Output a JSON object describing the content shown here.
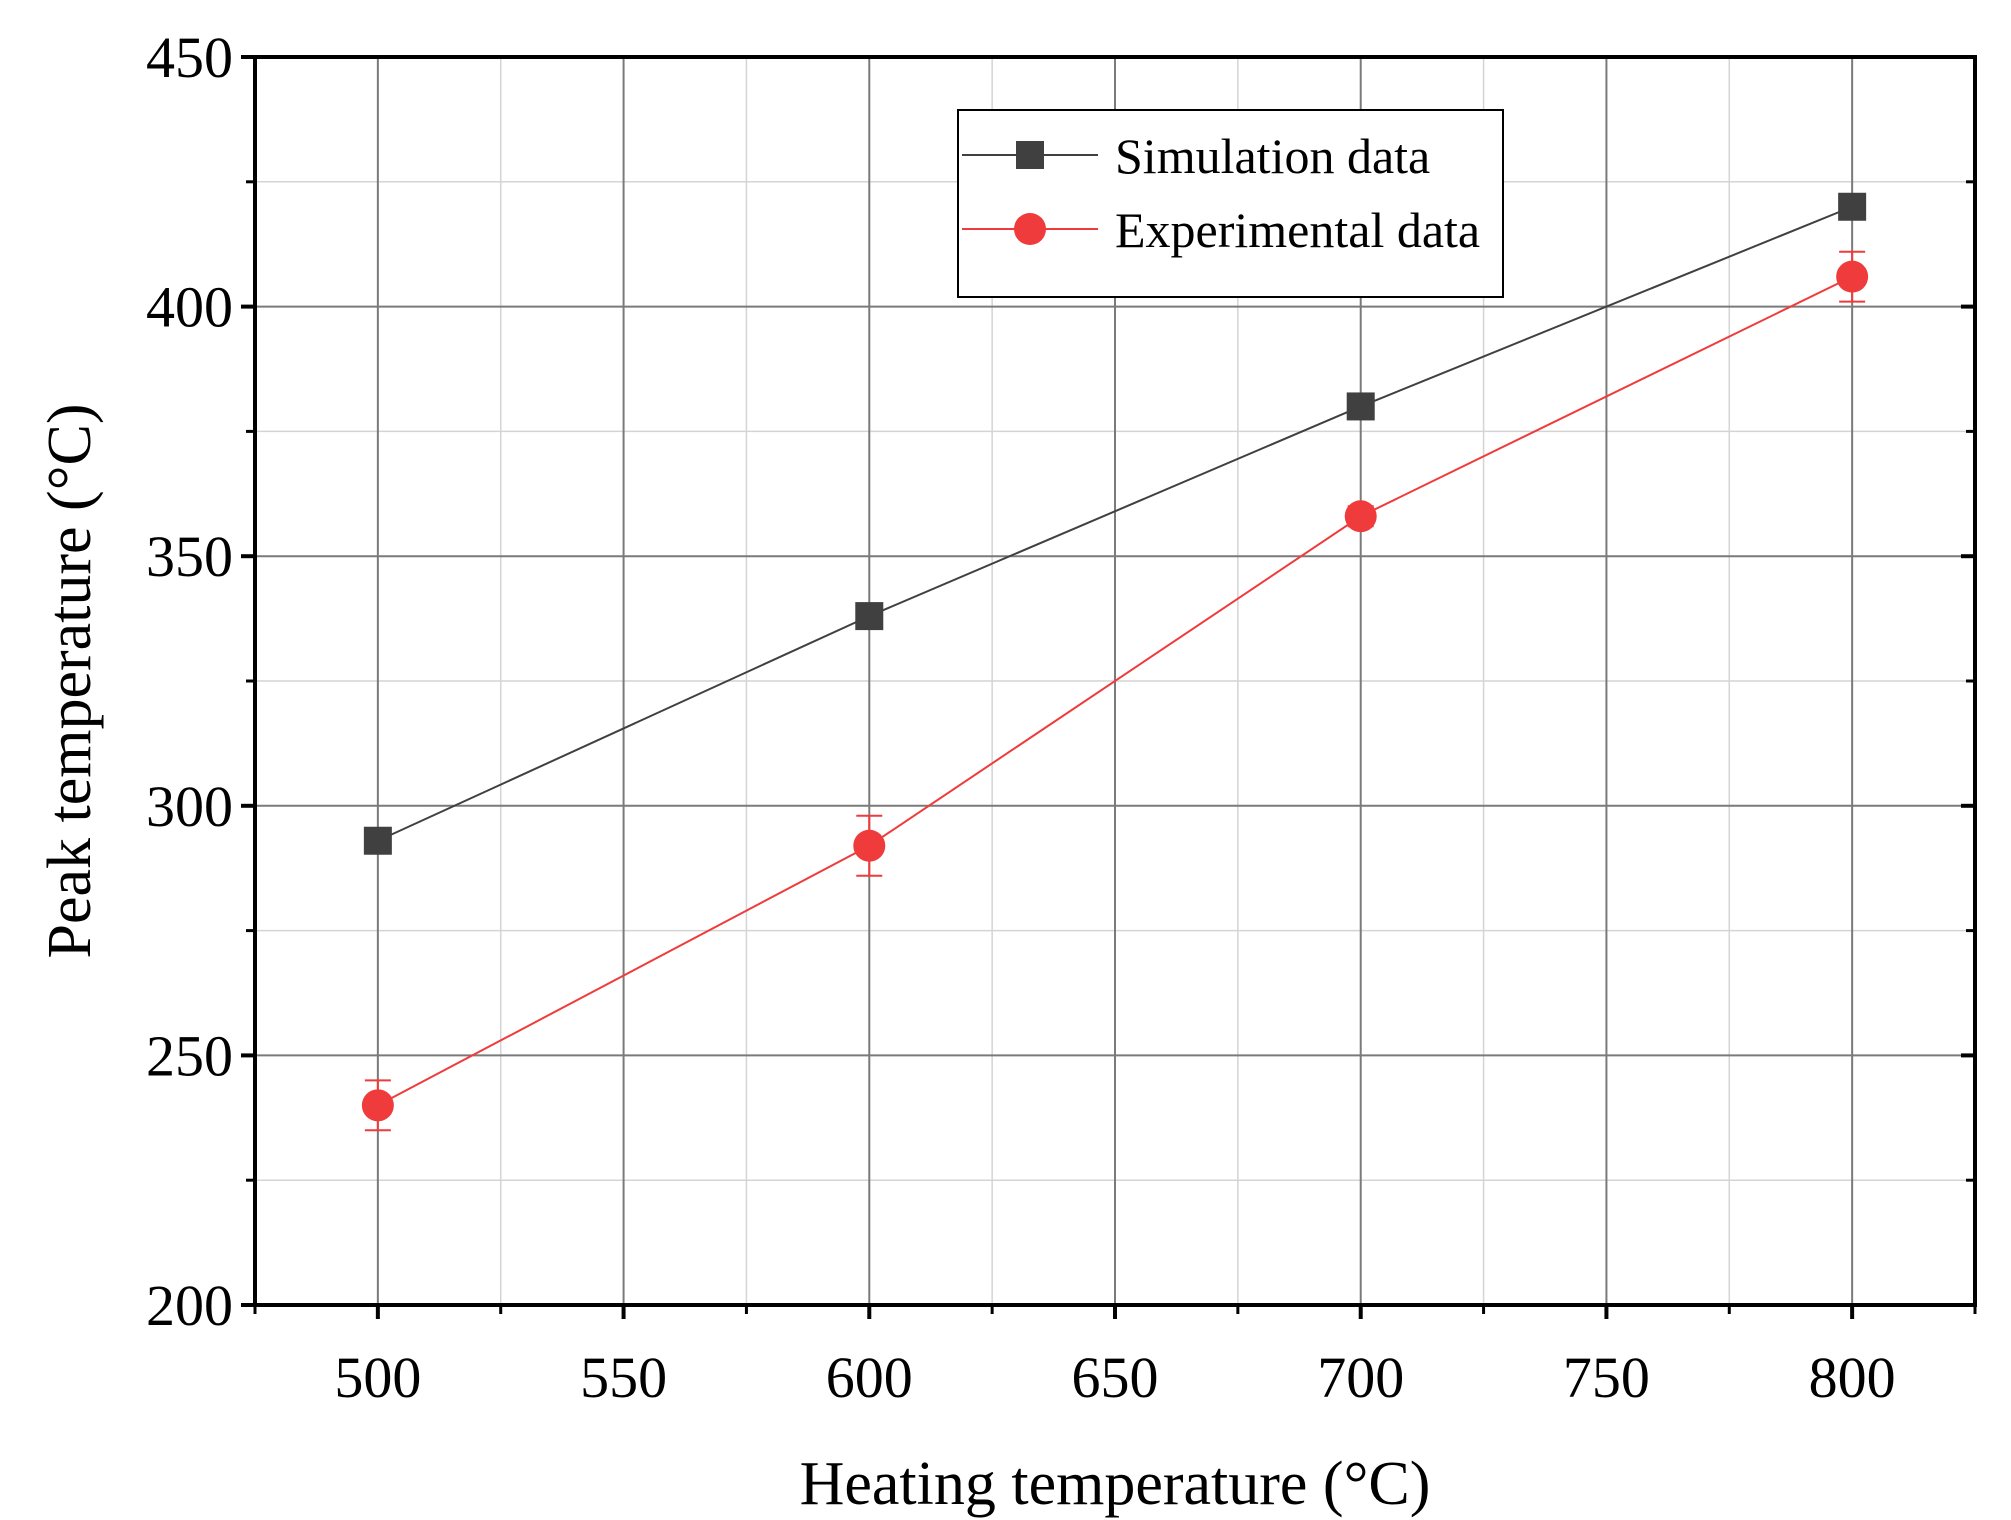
{
  "chart_data": {
    "type": "line",
    "title": "",
    "xlabel": "Heating temperature (°C)",
    "ylabel": "Peak temperature (°C)",
    "xlim": [
      475,
      825
    ],
    "ylim": [
      200,
      450
    ],
    "xticks": [
      500,
      550,
      600,
      650,
      700,
      750,
      800
    ],
    "xtick_labels": [
      "500",
      "550",
      "600",
      "650",
      "700",
      "750",
      "800"
    ],
    "yticks": [
      200,
      250,
      300,
      350,
      400,
      450
    ],
    "ytick_labels": [
      "200",
      "250",
      "300",
      "350",
      "400",
      "450"
    ],
    "grid": true,
    "legend_position": "top-right",
    "x": [
      500,
      600,
      700,
      800
    ],
    "series": [
      {
        "name": "Simulation data",
        "marker": "square",
        "color": "#404040",
        "values": [
          293,
          338,
          380,
          420
        ]
      },
      {
        "name": "Experimental data",
        "marker": "circle",
        "color": "#ef3b3b",
        "values": [
          240,
          292,
          358,
          406
        ],
        "errors": [
          5,
          6,
          2,
          5
        ]
      }
    ]
  }
}
